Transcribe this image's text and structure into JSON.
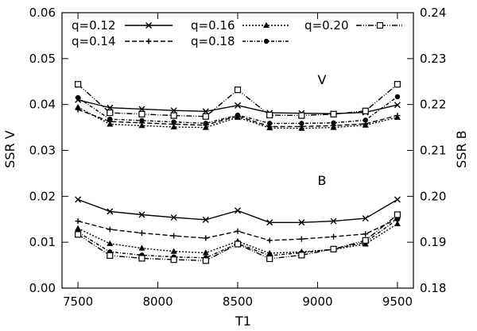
{
  "chart_data": {
    "type": "line",
    "xlabel": "T1",
    "ylabel_left": "SSR V",
    "ylabel_right": "SSR B",
    "xlim": [
      7400,
      9600
    ],
    "ylim_left": [
      0.0,
      0.06
    ],
    "ylim_right": [
      0.18,
      0.24
    ],
    "x_ticks": [
      7500,
      8000,
      8500,
      9000,
      9500
    ],
    "y_ticks_left": [
      "0.00",
      "0.01",
      "0.02",
      "0.03",
      "0.04",
      "0.05",
      "0.06"
    ],
    "y_ticks_right": [
      "0.18",
      "0.19",
      "0.20",
      "0.21",
      "0.22",
      "0.23",
      "0.24"
    ],
    "grid": false,
    "legend_position": "top",
    "annotations": [
      "V",
      "B"
    ],
    "x": [
      7500,
      7700,
      7900,
      8100,
      8300,
      8500,
      8700,
      8900,
      9100,
      9300,
      9500
    ],
    "series": [
      {
        "name": "q=0.12",
        "marker": "x",
        "dash": "solid",
        "V": [
          0.041,
          0.0393,
          0.039,
          0.0387,
          0.0385,
          0.0398,
          0.0382,
          0.0381,
          0.038,
          0.0383,
          0.0399
        ],
        "B": [
          0.0193,
          0.0167,
          0.016,
          0.0154,
          0.0149,
          0.0169,
          0.0143,
          0.0143,
          0.0146,
          0.0152,
          0.0193
        ]
      },
      {
        "name": "q=0.14",
        "marker": "+",
        "dash": "dashed",
        "V": [
          0.0389,
          0.0363,
          0.036,
          0.0357,
          0.0355,
          0.0375,
          0.0352,
          0.0352,
          0.0354,
          0.0358,
          0.0376
        ],
        "B": [
          0.0146,
          0.0128,
          0.012,
          0.0114,
          0.0109,
          0.0124,
          0.0104,
          0.0107,
          0.0112,
          0.0118,
          0.0151
        ]
      },
      {
        "name": "q=0.16",
        "marker": "triangle",
        "dash": "dotted",
        "V": [
          0.0394,
          0.0357,
          0.0354,
          0.0351,
          0.035,
          0.0372,
          0.0349,
          0.0348,
          0.035,
          0.0355,
          0.0372
        ],
        "B": [
          0.013,
          0.0097,
          0.0087,
          0.008,
          0.0077,
          0.0102,
          0.0076,
          0.0079,
          0.0084,
          0.0096,
          0.014
        ]
      },
      {
        "name": "q=0.18",
        "marker": "circle",
        "dash": "dashdot-dense",
        "V": [
          0.0415,
          0.0368,
          0.0365,
          0.0362,
          0.0359,
          0.0377,
          0.0359,
          0.0359,
          0.036,
          0.0366,
          0.0417
        ],
        "B": [
          0.0122,
          0.0079,
          0.0072,
          0.0068,
          0.0066,
          0.0097,
          0.0071,
          0.0077,
          0.0085,
          0.01,
          0.015
        ]
      },
      {
        "name": "q=0.20",
        "marker": "square-open",
        "dash": "dashdotdot",
        "V": [
          0.0444,
          0.0382,
          0.0379,
          0.0376,
          0.0374,
          0.0432,
          0.0377,
          0.0376,
          0.0379,
          0.0386,
          0.0444
        ],
        "B": [
          0.0117,
          0.0071,
          0.0065,
          0.0062,
          0.006,
          0.0096,
          0.0064,
          0.0072,
          0.0085,
          0.0104,
          0.016
        ]
      }
    ]
  }
}
